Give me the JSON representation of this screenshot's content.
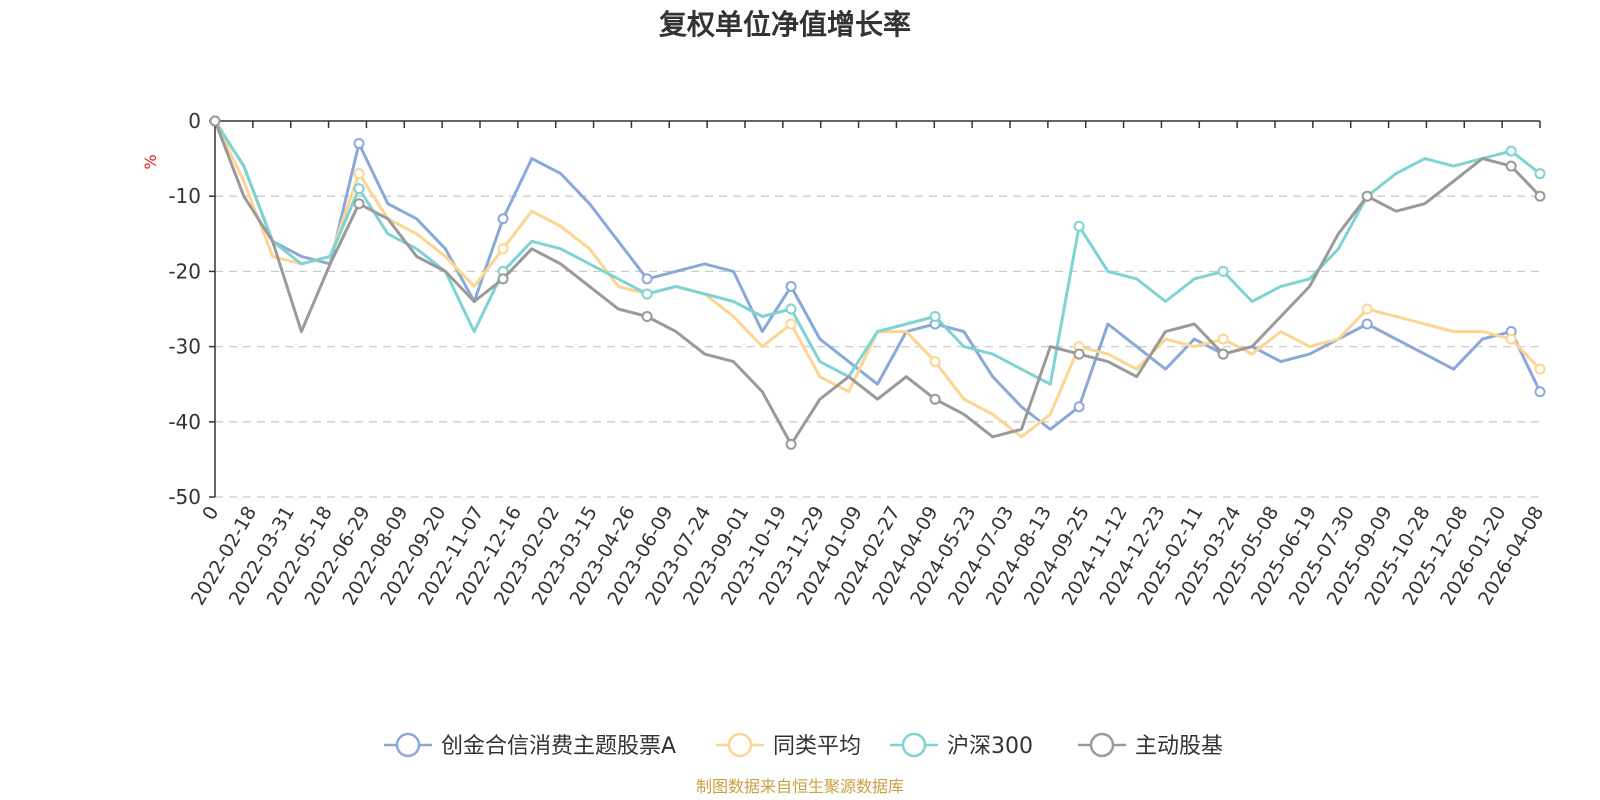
{
  "chart_data": {
    "type": "line",
    "title": "复权单位净值增长率",
    "ylabel": "%",
    "ylim": [
      -50,
      0
    ],
    "yticks": [
      0,
      -10,
      -20,
      -30,
      -40,
      -50
    ],
    "grid": true,
    "legend_position": "bottom",
    "source": "制图数据来自恒生聚源数据库",
    "x_labels": [
      "0",
      "2022-02-18",
      "2022-03-31",
      "2022-05-18",
      "2022-06-29",
      "2022-08-09",
      "2022-09-20",
      "2022-11-07",
      "2022-12-16",
      "2023-02-02",
      "2023-03-15",
      "2023-04-26",
      "2023-06-09",
      "2023-07-24",
      "2023-09-01",
      "2023-10-19",
      "2023-11-29",
      "2024-01-09",
      "2024-02-27",
      "2024-04-09",
      "2024-05-23",
      "2024-07-03",
      "2024-08-13",
      "2024-09-25",
      "2024-11-12",
      "2024-12-23",
      "2025-02-11",
      "2025-03-24",
      "2025-05-08",
      "2025-06-19",
      "2025-07-30",
      "2025-09-09",
      "2025-10-28",
      "2025-12-08",
      "2026-01-20",
      "2026-04-08"
    ],
    "series": [
      {
        "name": "创金合信消费主题股票A",
        "color": "#8aa8d9",
        "values": [
          0,
          -6,
          -16,
          -18,
          -19,
          -3,
          -11,
          -13,
          -17,
          -24,
          -13,
          -5,
          -7,
          -11,
          -16,
          -21,
          -20,
          -19,
          -20,
          -28,
          -22,
          -29,
          -32,
          -35,
          -28,
          -27,
          -28,
          -34,
          -38,
          -41,
          -38,
          -27,
          -30,
          -33,
          -29,
          -31,
          -30,
          -32,
          -31,
          -29,
          -27,
          -29,
          -31,
          -33,
          -29,
          -28,
          -36
        ]
      },
      {
        "name": "同类平均",
        "color": "#fcd590",
        "values": [
          0,
          -8,
          -18,
          -19,
          -18,
          -7,
          -13,
          -15,
          -18,
          -22,
          -17,
          -12,
          -14,
          -17,
          -22,
          -23,
          -22,
          -23,
          -26,
          -30,
          -27,
          -34,
          -36,
          -28,
          -28,
          -32,
          -37,
          -39,
          -42,
          -39,
          -30,
          -31,
          -33,
          -29,
          -30,
          -29,
          -31,
          -28,
          -30,
          -29,
          -25,
          -26,
          -27,
          -28,
          -28,
          -29,
          -33
        ]
      },
      {
        "name": "沪深300",
        "color": "#7fd3d3",
        "values": [
          0,
          -6,
          -16,
          -19,
          -18,
          -9,
          -15,
          -17,
          -20,
          -28,
          -20,
          -16,
          -17,
          -19,
          -21,
          -23,
          -22,
          -23,
          -24,
          -26,
          -25,
          -32,
          -34,
          -28,
          -27,
          -26,
          -30,
          -31,
          -33,
          -35,
          -14,
          -20,
          -21,
          -24,
          -21,
          -20,
          -24,
          -22,
          -21,
          -17,
          -10,
          -7,
          -5,
          -6,
          -5,
          -4,
          -7
        ]
      },
      {
        "name": "主动股基",
        "color": "#9a9a9a",
        "values": [
          0,
          -10,
          -16,
          -28,
          -19,
          -11,
          -13,
          -18,
          -20,
          -24,
          -21,
          -17,
          -19,
          -22,
          -25,
          -26,
          -28,
          -31,
          -32,
          -36,
          -43,
          -37,
          -34,
          -37,
          -34,
          -37,
          -39,
          -42,
          -41,
          -30,
          -31,
          -32,
          -34,
          -28,
          -27,
          -31,
          -30,
          -26,
          -22,
          -15,
          -10,
          -12,
          -11,
          -8,
          -5,
          -6,
          -10
        ]
      }
    ]
  }
}
